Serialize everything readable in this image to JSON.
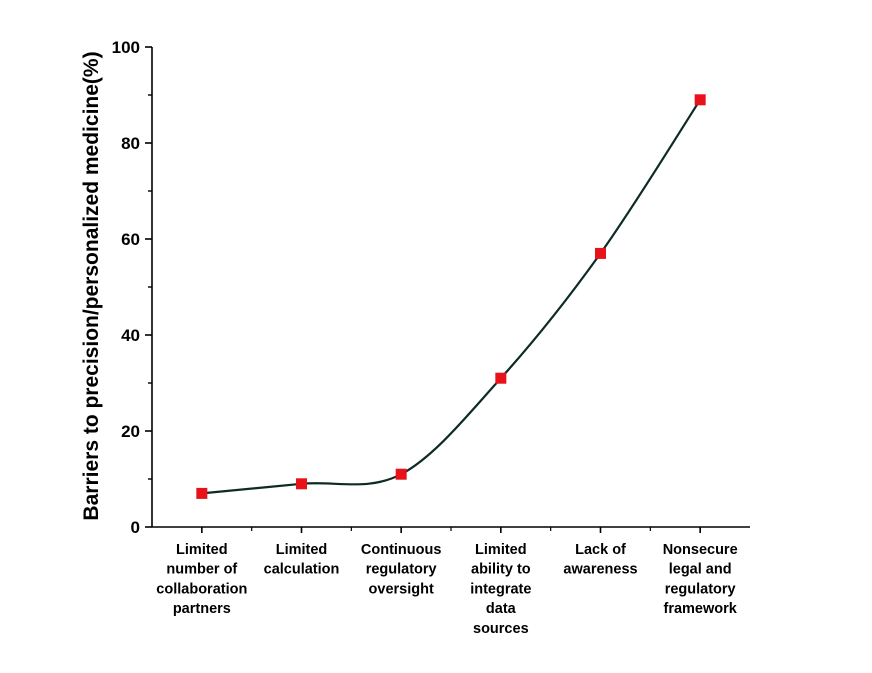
{
  "chart_data": {
    "type": "line",
    "title": "",
    "xlabel": "",
    "ylabel": "Barriers to precision/personalized medicine(%)",
    "ylim": [
      0,
      100
    ],
    "yticks": [
      0,
      20,
      40,
      60,
      80,
      100
    ],
    "grid": false,
    "legend": "none",
    "smooth": true,
    "categories": [
      [
        "Limited",
        "number of",
        "collaboration",
        "partners"
      ],
      [
        "Limited",
        "calculation"
      ],
      [
        "Continuous",
        "regulatory",
        "oversight"
      ],
      [
        "Limited",
        "ability to",
        "integrate",
        "data",
        "sources"
      ],
      [
        "Lack of",
        "awareness"
      ],
      [
        "Nonsecure",
        "legal and",
        "regulatory",
        "framework"
      ]
    ],
    "series": [
      {
        "values": [
          7,
          9,
          11,
          31,
          57,
          89
        ],
        "line_color": "#0d2b26",
        "marker_color": "#e8121a",
        "marker": "square"
      }
    ]
  }
}
